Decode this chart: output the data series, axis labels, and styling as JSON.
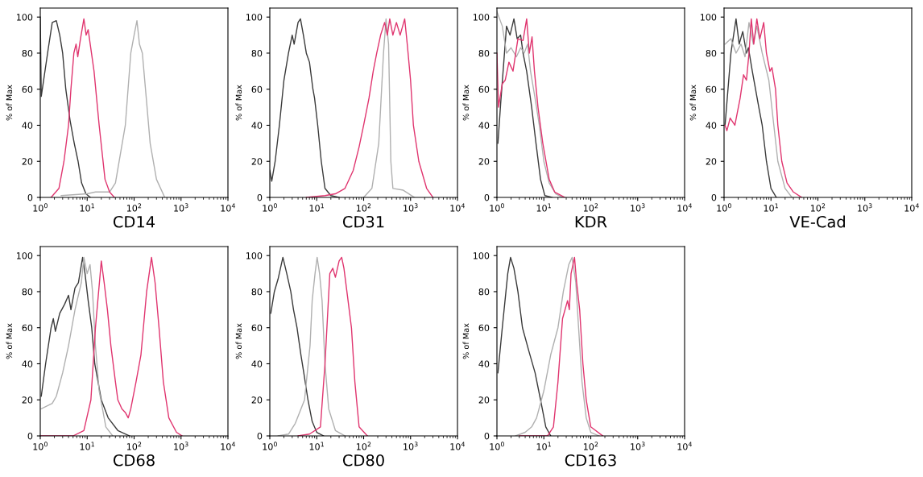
{
  "chart_data": [
    {
      "type": "line",
      "xlabel": "CD14",
      "ylabel": "% of Max",
      "log": "x",
      "xlim": [
        1,
        10000
      ],
      "xticks": [
        {
          "value": 1,
          "label": "10$^{0}$"
        },
        {
          "value": 10,
          "label": "10$^{1}$"
        },
        {
          "value": 100,
          "label": "10$^{2}$"
        },
        {
          "value": 1000,
          "label": "10$^{3}$"
        },
        {
          "value": 10000,
          "label": "10$^{4}$"
        }
      ],
      "ylim": [
        0,
        105
      ],
      "yticks": [
        0,
        20,
        40,
        60,
        80,
        100
      ],
      "series": [
        {
          "color": "#3a3a3a",
          "x": [
            1.0,
            1.05,
            1.47,
            1.8,
            2.2,
            2.6,
            3.0,
            3.5,
            4.3,
            5.3,
            6.4,
            7.6,
            9.4,
            11.7
          ],
          "values": [
            100,
            56,
            82,
            97,
            98,
            90,
            80,
            60,
            43,
            30,
            20,
            8,
            2,
            0
          ]
        },
        {
          "color": "#b0b0b0",
          "x": [
            2.8,
            10,
            15,
            30,
            40,
            65,
            85,
            100,
            115,
            130,
            150,
            175,
            220,
            300,
            450
          ],
          "values": [
            1,
            2,
            3,
            3,
            8,
            40,
            80,
            90,
            98,
            85,
            80,
            60,
            30,
            10,
            0
          ]
        },
        {
          "color": "#e0356f",
          "x": [
            1.7,
            2.5,
            3.2,
            4.0,
            4.5,
            5.2,
            5.8,
            6.3,
            7.2,
            8.5,
            9.5,
            10.5,
            14,
            18,
            24,
            30,
            38
          ],
          "values": [
            0,
            5,
            20,
            40,
            60,
            80,
            85,
            78,
            88,
            99,
            90,
            93,
            70,
            40,
            10,
            3,
            0
          ]
        }
      ]
    },
    {
      "type": "line",
      "xlabel": "CD31",
      "ylabel": "% of Max",
      "log": "x",
      "xlim": [
        1,
        10000
      ],
      "xticks": [
        {
          "value": 1,
          "label": "10$^{0}$"
        },
        {
          "value": 10,
          "label": "10$^{1}$"
        },
        {
          "value": 100,
          "label": "10$^{2}$"
        },
        {
          "value": 1000,
          "label": "10$^{3}$"
        },
        {
          "value": 10000,
          "label": "10$^{4}$"
        }
      ],
      "ylim": [
        0,
        105
      ],
      "yticks": [
        0,
        20,
        40,
        60,
        80,
        100
      ],
      "series": [
        {
          "color": "#3a3a3a",
          "x": [
            1.0,
            1.1,
            1.3,
            1.6,
            2.0,
            2.5,
            3.0,
            3.3,
            4.0,
            4.5,
            5.2,
            6.0,
            7.0,
            8.3,
            9,
            10.5,
            12.5,
            15,
            20,
            30
          ],
          "values": [
            15,
            9,
            20,
            40,
            65,
            80,
            90,
            85,
            97,
            99,
            90,
            80,
            75,
            60,
            55,
            40,
            20,
            5,
            1,
            0
          ]
        },
        {
          "color": "#b0b0b0",
          "x": [
            100,
            150,
            210,
            265,
            300,
            340,
            380,
            420,
            700,
            1200
          ],
          "values": [
            0,
            5,
            30,
            80,
            99,
            85,
            20,
            5,
            4,
            0
          ]
        },
        {
          "color": "#e0356f",
          "x": [
            6,
            15,
            25,
            40,
            60,
            80,
            100,
            130,
            160,
            190,
            230,
            280,
            320,
            360,
            420,
            500,
            600,
            750,
            850,
            1000,
            1150,
            1500,
            2200,
            3000
          ],
          "values": [
            0,
            1,
            2,
            5,
            15,
            28,
            40,
            55,
            70,
            80,
            90,
            97,
            90,
            99,
            90,
            97,
            90,
            99,
            85,
            65,
            40,
            20,
            5,
            0
          ]
        }
      ]
    },
    {
      "type": "line",
      "xlabel": "KDR",
      "ylabel": "% of Max",
      "log": "x",
      "xlim": [
        1,
        10000
      ],
      "xticks": [
        {
          "value": 1,
          "label": "10$^{0}$"
        },
        {
          "value": 10,
          "label": "10$^{1}$"
        },
        {
          "value": 100,
          "label": "10$^{2}$"
        },
        {
          "value": 1000,
          "label": "10$^{3}$"
        },
        {
          "value": 10000,
          "label": "10$^{4}$"
        }
      ],
      "ylim": [
        0,
        105
      ],
      "yticks": [
        0,
        20,
        40,
        60,
        80,
        100
      ],
      "series": [
        {
          "color": "#3a3a3a",
          "x": [
            1.05,
            1.2,
            1.6,
            1.9,
            2.3,
            2.7,
            3.2,
            3.6,
            4.3,
            5.5,
            6.8,
            8.5,
            10.5,
            15
          ],
          "values": [
            30,
            52,
            95,
            90,
            99,
            88,
            90,
            80,
            70,
            50,
            30,
            10,
            1,
            0
          ]
        },
        {
          "color": "#b0b0b0",
          "x": [
            1.0,
            1.3,
            1.6,
            2.0,
            2.6,
            3.2,
            3.8,
            4.5,
            5.2,
            6.5,
            8,
            10,
            13,
            18,
            25
          ],
          "values": [
            103,
            95,
            80,
            83,
            78,
            83,
            80,
            85,
            70,
            55,
            40,
            20,
            8,
            2,
            0
          ]
        },
        {
          "color": "#e0356f",
          "x": [
            1.0,
            1.08,
            1.3,
            1.5,
            1.8,
            2.2,
            2.8,
            3.6,
            4.3,
            4.9,
            5.6,
            6.3,
            7.5,
            9.5,
            13,
            17,
            28
          ],
          "values": [
            80,
            50,
            63,
            65,
            75,
            70,
            88,
            87,
            99,
            80,
            89,
            70,
            50,
            30,
            10,
            3,
            0
          ]
        }
      ]
    },
    {
      "type": "line",
      "xlabel": "VE-Cad",
      "ylabel": "% of Max",
      "log": "x",
      "xlim": [
        1,
        10000
      ],
      "xticks": [
        {
          "value": 1,
          "label": "10$^{0}$"
        },
        {
          "value": 10,
          "label": "10$^{1}$"
        },
        {
          "value": 100,
          "label": "10$^{2}$"
        },
        {
          "value": 1000,
          "label": "10$^{3}$"
        },
        {
          "value": 10000,
          "label": "10$^{4}$"
        }
      ],
      "ylim": [
        0,
        105
      ],
      "yticks": [
        0,
        20,
        40,
        60,
        80,
        100
      ],
      "series": [
        {
          "color": "#3a3a3a",
          "x": [
            1.05,
            1.4,
            1.8,
            2.1,
            2.5,
            3.0,
            3.3,
            4,
            5.5,
            6.5,
            8,
            10,
            13
          ],
          "values": [
            40,
            80,
            99,
            85,
            92,
            80,
            83,
            70,
            50,
            40,
            20,
            5,
            0
          ]
        },
        {
          "color": "#b0b0b0",
          "x": [
            1.05,
            1.4,
            1.8,
            2.3,
            2.8,
            3.4,
            4.2,
            5.0,
            6.5,
            9,
            11.5,
            14,
            20,
            28
          ],
          "values": [
            85,
            88,
            80,
            85,
            78,
            97,
            85,
            95,
            80,
            65,
            40,
            20,
            5,
            0
          ]
        },
        {
          "color": "#e0356f",
          "x": [
            1.05,
            1.15,
            1.35,
            1.7,
            2.2,
            2.6,
            3.0,
            3.4,
            3.8,
            4.3,
            5.0,
            5.8,
            7.0,
            8,
            9.5,
            10.5,
            12.5,
            14,
            17,
            22,
            30,
            45
          ],
          "values": [
            40,
            37,
            44,
            40,
            55,
            68,
            65,
            80,
            99,
            85,
            99,
            88,
            97,
            80,
            70,
            72,
            60,
            40,
            20,
            8,
            3,
            0
          ]
        }
      ]
    },
    {
      "type": "line",
      "xlabel": "CD68",
      "ylabel": "% of Max",
      "log": "x",
      "xlim": [
        1,
        10000
      ],
      "xticks": [
        {
          "value": 1,
          "label": "10$^{0}$"
        },
        {
          "value": 10,
          "label": "10$^{1}$"
        },
        {
          "value": 100,
          "label": "10$^{2}$"
        },
        {
          "value": 1000,
          "label": "10$^{3}$"
        },
        {
          "value": 10000,
          "label": "10$^{4}$"
        }
      ],
      "ylim": [
        0,
        105
      ],
      "yticks": [
        0,
        20,
        40,
        60,
        80,
        100
      ],
      "series": [
        {
          "color": "#3a3a3a",
          "x": [
            1.05,
            1.3,
            1.7,
            1.9,
            2.1,
            2.6,
            3.3,
            4.0,
            4.5,
            5.5,
            6.5,
            8.0,
            9.0,
            10.5,
            12.5,
            14.5,
            20,
            28,
            45,
            80
          ],
          "values": [
            22,
            40,
            60,
            65,
            58,
            68,
            73,
            78,
            70,
            82,
            85,
            99,
            90,
            75,
            60,
            40,
            20,
            10,
            3,
            0
          ]
        },
        {
          "color": "#b0b0b0",
          "x": [
            1.05,
            1.8,
            2.2,
            3.0,
            4.0,
            5.5,
            7.5,
            8.5,
            10,
            11.5,
            13,
            15,
            18,
            25,
            35
          ],
          "values": [
            15,
            18,
            22,
            35,
            50,
            70,
            85,
            99,
            90,
            95,
            80,
            50,
            25,
            5,
            0
          ]
        },
        {
          "color": "#e0356f",
          "x": [
            1,
            5,
            8.5,
            12,
            15,
            20,
            23,
            27,
            32,
            40,
            45,
            55,
            65,
            75,
            85,
            110,
            140,
            185,
            235,
            280,
            340,
            420,
            550,
            800,
            1050
          ],
          "values": [
            0,
            0,
            3,
            20,
            60,
            97,
            85,
            70,
            50,
            30,
            20,
            15,
            13,
            10,
            15,
            30,
            45,
            80,
            99,
            85,
            60,
            30,
            10,
            2,
            0
          ]
        }
      ]
    },
    {
      "type": "line",
      "xlabel": "CD80",
      "ylabel": "% of Max",
      "log": "x",
      "xlim": [
        1,
        10000
      ],
      "xticks": [
        {
          "value": 1,
          "label": "10$^{0}$"
        },
        {
          "value": 10,
          "label": "10$^{1}$"
        },
        {
          "value": 100,
          "label": "10$^{2}$"
        },
        {
          "value": 1000,
          "label": "10$^{3}$"
        },
        {
          "value": 10000,
          "label": "10$^{4}$"
        }
      ],
      "ylim": [
        0,
        105
      ],
      "yticks": [
        0,
        20,
        40,
        60,
        80,
        100
      ],
      "series": [
        {
          "color": "#3a3a3a",
          "x": [
            1.05,
            1.25,
            1.5,
            1.9,
            2.3,
            2.8,
            3.2,
            3.8,
            4.6,
            5.3,
            6.5,
            8,
            10,
            14
          ],
          "values": [
            68,
            80,
            87,
            99,
            90,
            80,
            70,
            60,
            45,
            35,
            20,
            8,
            2,
            0
          ]
        },
        {
          "color": "#b0b0b0",
          "x": [
            1.5,
            2.5,
            3.5,
            5.5,
            7.2,
            8.0,
            9.2,
            10.2,
            11.5,
            13,
            15,
            18,
            25,
            40
          ],
          "values": [
            0,
            1,
            7,
            20,
            50,
            75,
            90,
            99,
            90,
            75,
            40,
            15,
            3,
            0
          ]
        },
        {
          "color": "#e0356f",
          "x": [
            4,
            7,
            12,
            15,
            19,
            22,
            25,
            30,
            34,
            38,
            45,
            55,
            65,
            80,
            120
          ],
          "values": [
            0,
            1,
            5,
            40,
            90,
            93,
            88,
            97,
            99,
            93,
            78,
            60,
            30,
            5,
            0
          ]
        }
      ]
    },
    {
      "type": "line",
      "xlabel": "CD163",
      "ylabel": "% of Max",
      "log": "x",
      "xlim": [
        1,
        10000
      ],
      "xticks": [
        {
          "value": 1,
          "label": "10$^{0}$"
        },
        {
          "value": 10,
          "label": "10$^{1}$"
        },
        {
          "value": 100,
          "label": "10$^{2}$"
        },
        {
          "value": 1000,
          "label": "10$^{3}$"
        },
        {
          "value": 10000,
          "label": "10$^{4}$"
        }
      ],
      "ylim": [
        0,
        105
      ],
      "yticks": [
        0,
        20,
        40,
        60,
        80,
        100
      ],
      "series": [
        {
          "color": "#3a3a3a",
          "x": [
            1.05,
            1.3,
            1.7,
            1.95,
            2.3,
            2.8,
            3.5,
            4.8,
            6.5,
            8.5,
            11,
            14
          ],
          "values": [
            35,
            60,
            90,
            99,
            93,
            80,
            60,
            47,
            35,
            20,
            5,
            0
          ]
        },
        {
          "color": "#b0b0b0",
          "x": [
            2.5,
            4,
            5.5,
            7,
            10,
            14,
            20,
            26,
            34,
            40,
            48,
            55,
            65,
            80,
            100,
            150
          ],
          "values": [
            0,
            2,
            5,
            10,
            25,
            45,
            60,
            80,
            95,
            99,
            85,
            60,
            30,
            10,
            2,
            0
          ]
        },
        {
          "color": "#e0356f",
          "x": [
            3,
            12,
            16,
            20,
            25,
            32,
            35,
            38,
            45,
            50,
            58,
            68,
            80,
            100,
            180
          ],
          "values": [
            0,
            0,
            5,
            30,
            65,
            75,
            70,
            90,
            99,
            85,
            70,
            40,
            20,
            5,
            0
          ]
        }
      ]
    }
  ]
}
